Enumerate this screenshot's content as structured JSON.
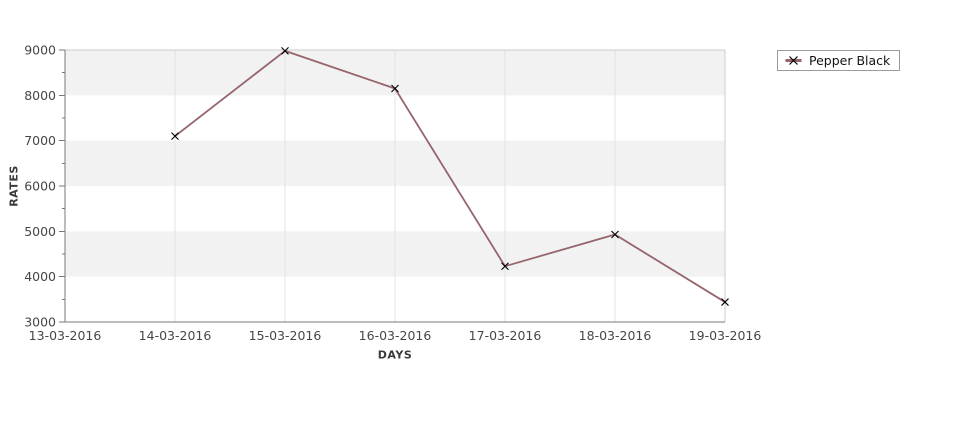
{
  "chart_data": {
    "type": "line",
    "title": "",
    "xlabel": "DAYS",
    "ylabel": "RATES",
    "categories": [
      "13-03-2016",
      "14-03-2016",
      "15-03-2016",
      "16-03-2016",
      "17-03-2016",
      "18-03-2016",
      "19-03-2016"
    ],
    "y_ticks": [
      3000,
      4000,
      5000,
      6000,
      7000,
      8000,
      9000
    ],
    "y_minor_step": 500,
    "ylim": [
      3000,
      9000
    ],
    "grid": true,
    "alternating_bands": true,
    "legend_position": "outside-top-right",
    "series": [
      {
        "name": "Pepper Black",
        "marker": "x",
        "points": [
          {
            "x": "14-03-2016",
            "y": 7100
          },
          {
            "x": "15-03-2016",
            "y": 8980
          },
          {
            "x": "16-03-2016",
            "y": 8150
          },
          {
            "x": "17-03-2016",
            "y": 4230
          },
          {
            "x": "18-03-2016",
            "y": 4930
          },
          {
            "x": "19-03-2016",
            "y": 3440
          }
        ]
      }
    ],
    "colors": {
      "line": "#96656c",
      "marker": "#000000",
      "band": "#f2f2f2",
      "grid": "#e3e3e3",
      "frame": "#cccccc",
      "axis": "#787878",
      "tick_text": "#474747",
      "axis_label_text": "#3a3a3a",
      "legend_border": "#9b9b9b",
      "legend_text": "#141414"
    }
  }
}
